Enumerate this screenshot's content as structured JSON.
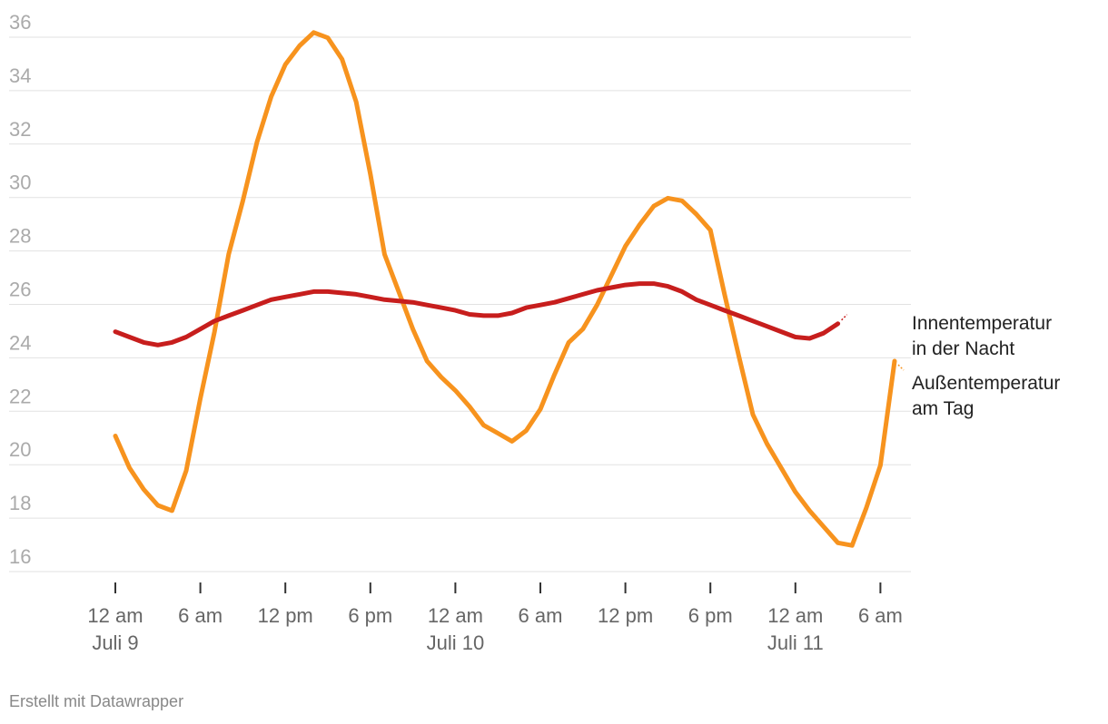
{
  "chart_data": {
    "type": "line",
    "xlabel": "",
    "ylabel": "",
    "ylim": [
      15,
      36
    ],
    "y_ticks": [
      16,
      18,
      20,
      22,
      24,
      26,
      28,
      30,
      32,
      34,
      36
    ],
    "grid": true,
    "legend_placement": "inline-right",
    "x_unit": "hours since 12 am Juli 9",
    "x_ticks": [
      {
        "x": 0,
        "label": "12 am",
        "sublabel": "Juli 9"
      },
      {
        "x": 6,
        "label": "6 am",
        "sublabel": ""
      },
      {
        "x": 12,
        "label": "12 pm",
        "sublabel": ""
      },
      {
        "x": 18,
        "label": "6 pm",
        "sublabel": ""
      },
      {
        "x": 24,
        "label": "12 am",
        "sublabel": "Juli 10"
      },
      {
        "x": 30,
        "label": "6 am",
        "sublabel": ""
      },
      {
        "x": 36,
        "label": "12 pm",
        "sublabel": ""
      },
      {
        "x": 42,
        "label": "6 pm",
        "sublabel": ""
      },
      {
        "x": 48,
        "label": "12 am",
        "sublabel": "Juli 11"
      },
      {
        "x": 54,
        "label": "6 am",
        "sublabel": ""
      }
    ],
    "series": [
      {
        "name": "Außentemperatur am Tag",
        "label_lines": [
          "Außentemperatur",
          "am Tag"
        ],
        "color": "#f7931e",
        "points": [
          [
            0,
            20.5
          ],
          [
            1,
            19.3
          ],
          [
            2,
            18.5
          ],
          [
            3,
            17.9
          ],
          [
            4,
            17.7
          ],
          [
            5,
            19.2
          ],
          [
            6,
            21.9
          ],
          [
            7,
            24.4
          ],
          [
            8,
            27.3
          ],
          [
            9,
            29.3
          ],
          [
            10,
            31.5
          ],
          [
            11,
            33.2
          ],
          [
            12,
            34.4
          ],
          [
            13,
            35.1
          ],
          [
            14,
            35.6
          ],
          [
            15,
            35.4
          ],
          [
            16,
            34.6
          ],
          [
            17,
            33.0
          ],
          [
            18,
            30.3
          ],
          [
            19,
            27.3
          ],
          [
            20,
            25.9
          ],
          [
            21,
            24.5
          ],
          [
            22,
            23.3
          ],
          [
            23,
            22.7
          ],
          [
            24,
            22.2
          ],
          [
            25,
            21.6
          ],
          [
            26,
            20.9
          ],
          [
            27,
            20.6
          ],
          [
            28,
            20.3
          ],
          [
            29,
            20.7
          ],
          [
            30,
            21.5
          ],
          [
            31,
            22.8
          ],
          [
            32,
            24.0
          ],
          [
            33,
            24.5
          ],
          [
            34,
            25.4
          ],
          [
            35,
            26.5
          ],
          [
            36,
            27.6
          ],
          [
            37,
            28.4
          ],
          [
            38,
            29.1
          ],
          [
            39,
            29.4
          ],
          [
            40,
            29.3
          ],
          [
            41,
            28.8
          ],
          [
            42,
            28.2
          ],
          [
            43,
            25.8
          ],
          [
            44,
            23.5
          ],
          [
            45,
            21.3
          ],
          [
            46,
            20.2
          ],
          [
            47,
            19.3
          ],
          [
            48,
            18.4
          ],
          [
            49,
            17.7
          ],
          [
            50,
            17.1
          ],
          [
            51,
            16.5
          ],
          [
            52,
            16.4
          ],
          [
            53,
            17.8
          ],
          [
            54,
            19.4
          ],
          [
            55,
            23.3
          ]
        ]
      },
      {
        "name": "Innentemperatur in der Nacht",
        "label_lines": [
          "Innentemperatur",
          "in der Nacht"
        ],
        "color": "#c71e1d",
        "points": [
          [
            0,
            24.4
          ],
          [
            1,
            24.2
          ],
          [
            2,
            24.0
          ],
          [
            3,
            23.9
          ],
          [
            4,
            24.0
          ],
          [
            5,
            24.2
          ],
          [
            6,
            24.5
          ],
          [
            7,
            24.8
          ],
          [
            8,
            25.0
          ],
          [
            9,
            25.2
          ],
          [
            10,
            25.4
          ],
          [
            11,
            25.6
          ],
          [
            12,
            25.7
          ],
          [
            13,
            25.8
          ],
          [
            14,
            25.9
          ],
          [
            15,
            25.9
          ],
          [
            16,
            25.85
          ],
          [
            17,
            25.8
          ],
          [
            18,
            25.7
          ],
          [
            19,
            25.6
          ],
          [
            20,
            25.55
          ],
          [
            21,
            25.5
          ],
          [
            22,
            25.4
          ],
          [
            23,
            25.3
          ],
          [
            24,
            25.2
          ],
          [
            25,
            25.05
          ],
          [
            26,
            25.0
          ],
          [
            27,
            25.0
          ],
          [
            28,
            25.1
          ],
          [
            29,
            25.3
          ],
          [
            30,
            25.4
          ],
          [
            31,
            25.5
          ],
          [
            32,
            25.65
          ],
          [
            33,
            25.8
          ],
          [
            34,
            25.95
          ],
          [
            35,
            26.05
          ],
          [
            36,
            26.15
          ],
          [
            37,
            26.2
          ],
          [
            38,
            26.2
          ],
          [
            39,
            26.1
          ],
          [
            40,
            25.9
          ],
          [
            41,
            25.6
          ],
          [
            42,
            25.4
          ],
          [
            43,
            25.2
          ],
          [
            44,
            25.0
          ],
          [
            45,
            24.8
          ],
          [
            46,
            24.6
          ],
          [
            47,
            24.4
          ],
          [
            48,
            24.2
          ],
          [
            49,
            24.15
          ],
          [
            50,
            24.35
          ],
          [
            51,
            24.7
          ]
        ]
      }
    ]
  },
  "footer": {
    "credit": "Erstellt mit Datawrapper"
  }
}
